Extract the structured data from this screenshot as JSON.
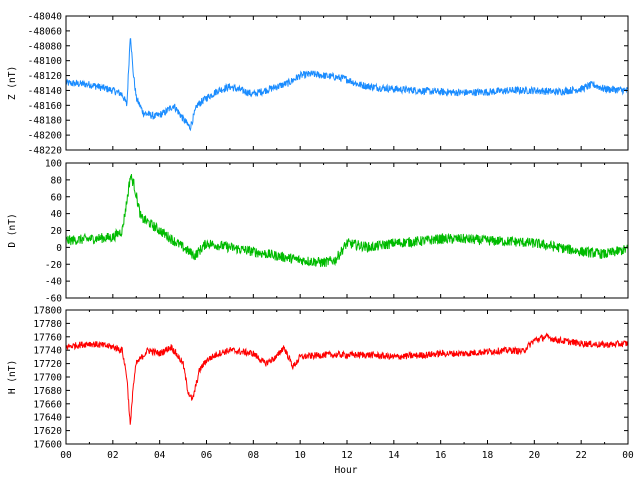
{
  "chart_data": [
    {
      "type": "line",
      "ylabel": "Z (nT)",
      "ylim": [
        -48220,
        -48040
      ],
      "yticks": [
        -48040,
        -48060,
        -48080,
        -48100,
        -48120,
        -48140,
        -48160,
        -48180,
        -48200,
        -48220
      ],
      "color": "#1a8cff",
      "noise": 5,
      "x": [
        0,
        1,
        2,
        2.4,
        2.6,
        2.75,
        2.85,
        3.0,
        3.3,
        3.8,
        4.2,
        4.6,
        5.0,
        5.3,
        5.6,
        6.0,
        6.5,
        7.0,
        7.5,
        8.0,
        8.5,
        9.0,
        9.5,
        10.0,
        10.5,
        11.0,
        11.5,
        12.0,
        12.5,
        13.0,
        14.0,
        15.0,
        16.0,
        17.0,
        18.0,
        19.0,
        20.0,
        21.0,
        22.0,
        22.5,
        23.0,
        24.0
      ],
      "y": [
        -48130,
        -48132,
        -48140,
        -48145,
        -48160,
        -48062,
        -48110,
        -48150,
        -48170,
        -48175,
        -48170,
        -48160,
        -48178,
        -48190,
        -48160,
        -48150,
        -48140,
        -48135,
        -48140,
        -48145,
        -48140,
        -48135,
        -48130,
        -48120,
        -48118,
        -48120,
        -48122,
        -48125,
        -48132,
        -48135,
        -48138,
        -48140,
        -48142,
        -48143,
        -48142,
        -48140,
        -48140,
        -48142,
        -48138,
        -48132,
        -48138,
        -48140
      ]
    },
    {
      "type": "line",
      "ylabel": "D (nT)",
      "ylim": [
        -60,
        100
      ],
      "yticks": [
        100,
        80,
        60,
        40,
        20,
        0,
        -20,
        -40,
        -60
      ],
      "color": "#00bb00",
      "noise": 6,
      "x": [
        0,
        1,
        2,
        2.4,
        2.6,
        2.75,
        2.9,
        3.2,
        3.5,
        4.0,
        4.5,
        5.0,
        5.5,
        6.0,
        7.0,
        8.0,
        9.0,
        10.0,
        11.0,
        11.5,
        12.0,
        13.0,
        14.0,
        15.0,
        16.0,
        17.0,
        18.0,
        19.0,
        20.0,
        21.0,
        22.0,
        23.0,
        24.0
      ],
      "y": [
        8,
        10,
        12,
        20,
        55,
        85,
        75,
        35,
        30,
        20,
        10,
        0,
        -10,
        5,
        0,
        -5,
        -10,
        -15,
        -18,
        -15,
        5,
        0,
        5,
        7,
        10,
        10,
        8,
        7,
        5,
        0,
        -5,
        -8,
        -2
      ]
    },
    {
      "type": "line",
      "ylabel": "H (nT)",
      "ylim": [
        17600,
        17800
      ],
      "yticks": [
        17800,
        17780,
        17760,
        17740,
        17720,
        17700,
        17680,
        17660,
        17640,
        17620,
        17600
      ],
      "xlabel": "Hour",
      "xticks": [
        "00",
        "02",
        "04",
        "06",
        "08",
        "10",
        "12",
        "14",
        "16",
        "18",
        "20",
        "22",
        "00"
      ],
      "xlim": [
        0,
        24
      ],
      "color": "#ff0000",
      "noise": 5,
      "x": [
        0,
        1,
        2,
        2.4,
        2.6,
        2.75,
        2.85,
        3.0,
        3.5,
        4.0,
        4.5,
        5.0,
        5.2,
        5.4,
        5.7,
        6.0,
        6.5,
        7.0,
        8.0,
        8.5,
        9.0,
        9.3,
        9.7,
        10.0,
        11.0,
        12.0,
        13.0,
        14.0,
        15.0,
        16.0,
        17.0,
        18.0,
        19.0,
        19.5,
        20.0,
        20.5,
        21.0,
        22.0,
        23.0,
        24.0
      ],
      "y": [
        17745,
        17750,
        17745,
        17740,
        17700,
        17625,
        17680,
        17720,
        17740,
        17735,
        17745,
        17720,
        17680,
        17665,
        17710,
        17725,
        17735,
        17740,
        17735,
        17720,
        17730,
        17745,
        17715,
        17730,
        17733,
        17733,
        17733,
        17730,
        17732,
        17735,
        17735,
        17738,
        17740,
        17738,
        17755,
        17760,
        17755,
        17750,
        17748,
        17750
      ]
    }
  ]
}
